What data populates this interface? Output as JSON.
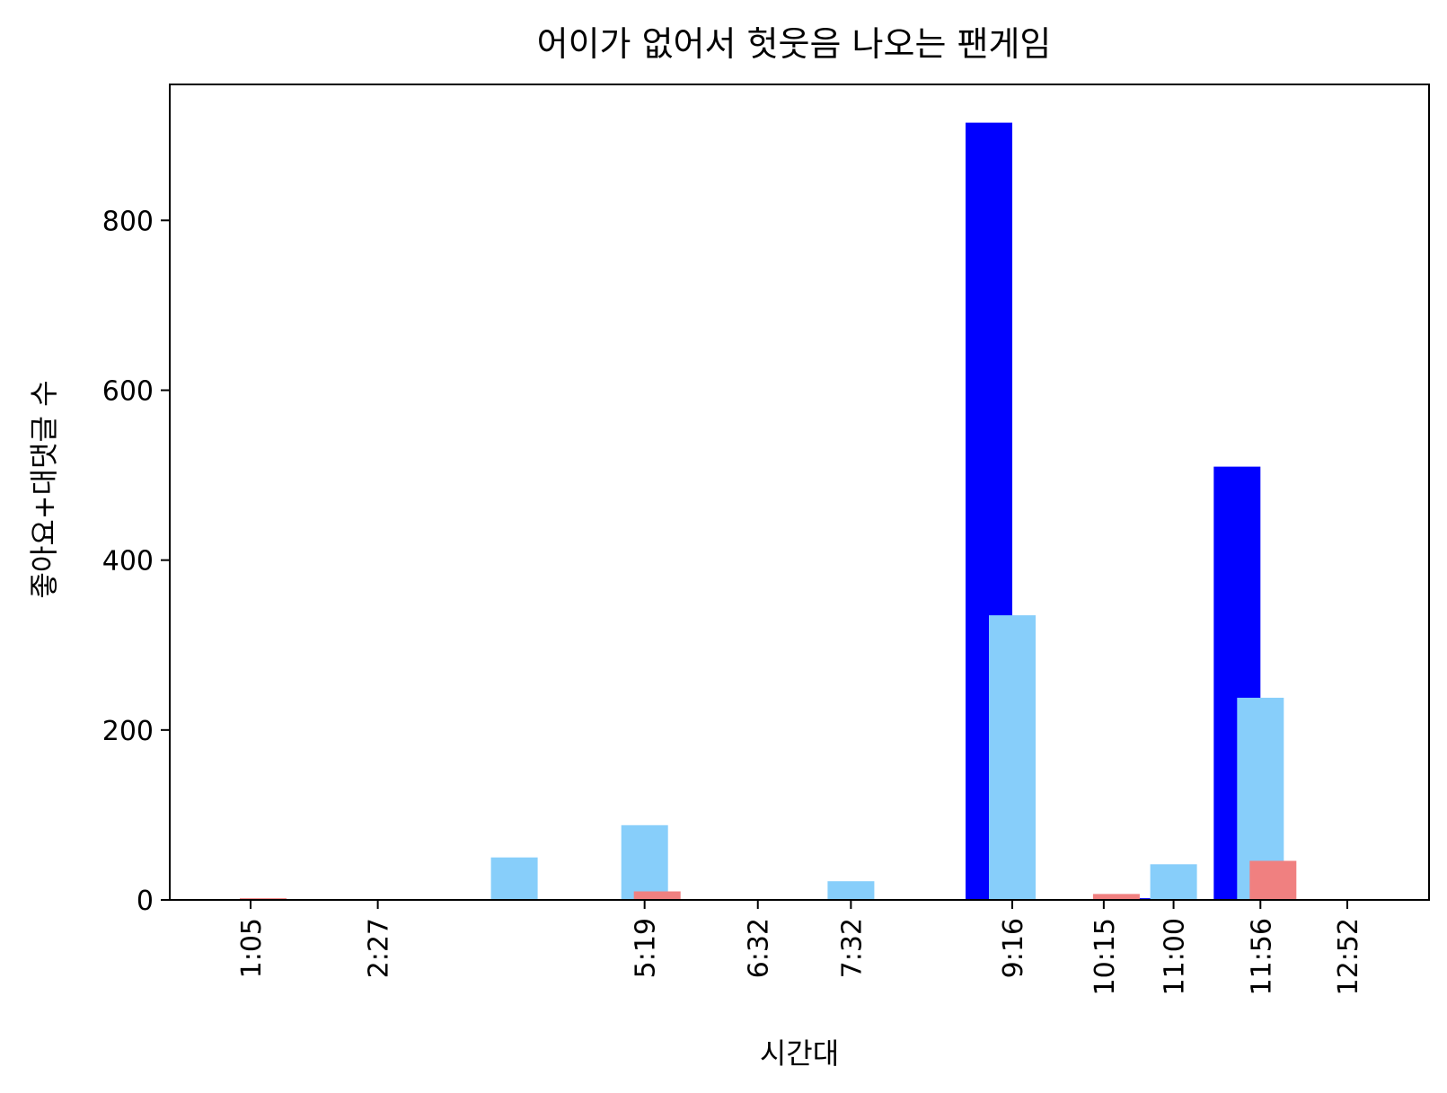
{
  "chart_data": {
    "type": "bar",
    "title": "어이가 없어서 헛웃음 나오는 팬게임",
    "xlabel": "시간대",
    "ylabel": "좋아요+대댓글 수",
    "ylim": [
      0,
      960
    ],
    "yticks": [
      0,
      200,
      400,
      600,
      800
    ],
    "grid": false,
    "xticks": [
      "1:05",
      "2:27",
      "5:19",
      "6:32",
      "7:32",
      "9:16",
      "10:15",
      "11:00",
      "11:56",
      "12:52"
    ],
    "series": [
      {
        "color": "#0000ff",
        "points": [
          {
            "x": "9:16",
            "value": 915
          },
          {
            "x": "11:00",
            "value": 2
          },
          {
            "x": "11:56",
            "value": 510
          }
        ]
      },
      {
        "color": "#87cefa",
        "points": [
          {
            "x": "3:55",
            "value": 50
          },
          {
            "x": "5:19",
            "value": 88
          },
          {
            "x": "7:32",
            "value": 22
          },
          {
            "x": "9:16",
            "value": 335
          },
          {
            "x": "11:00",
            "value": 42
          },
          {
            "x": "11:56",
            "value": 238
          }
        ]
      },
      {
        "color": "#f08080",
        "points": [
          {
            "x": "1:05",
            "value": 2
          },
          {
            "x": "5:19",
            "value": 10
          },
          {
            "x": "10:15",
            "value": 7
          },
          {
            "x": "11:56",
            "value": 46
          },
          {
            "x": "12:52",
            "value": 1
          }
        ]
      }
    ]
  }
}
